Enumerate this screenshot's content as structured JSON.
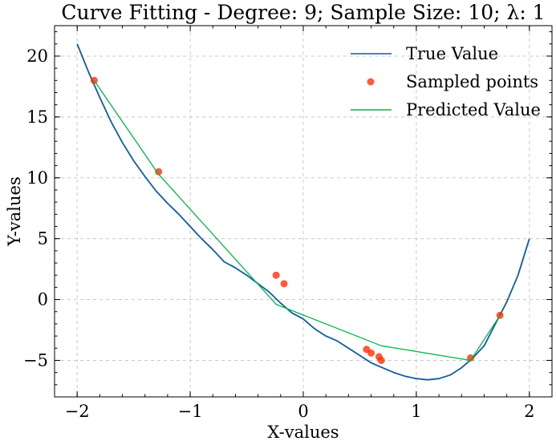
{
  "chart_data": {
    "type": "line",
    "title": "Curve Fitting - Degree: 9; Sample Size: 10; λ: 1",
    "xlabel": "X-values",
    "ylabel": "Y-values",
    "xlim": [
      -2.2,
      2.2
    ],
    "ylim": [
      -8,
      22.5
    ],
    "xticks": [
      -2,
      -1,
      0,
      1,
      2
    ],
    "xtick_labels": [
      "−2",
      "−1",
      "0",
      "1",
      "2"
    ],
    "yticks": [
      -5,
      0,
      5,
      10,
      15,
      20
    ],
    "ytick_labels": [
      "−5",
      "0",
      "5",
      "10",
      "15",
      "20"
    ],
    "grid": true,
    "legend_position": "top-right",
    "series": [
      {
        "name": "True Value",
        "kind": "line",
        "color": "#0c5da5",
        "x": [
          -2.0,
          -1.9,
          -1.8,
          -1.7,
          -1.6,
          -1.5,
          -1.4,
          -1.3,
          -1.2,
          -1.1,
          -1.0,
          -0.9,
          -0.8,
          -0.7,
          -0.6,
          -0.5,
          -0.4,
          -0.3,
          -0.2,
          -0.1,
          0.0,
          0.1,
          0.2,
          0.3,
          0.4,
          0.5,
          0.6,
          0.7,
          0.8,
          0.9,
          1.0,
          1.1,
          1.2,
          1.3,
          1.4,
          1.5,
          1.6,
          1.7,
          1.8,
          1.9,
          2.0
        ],
        "y": [
          21.0,
          18.7,
          16.6,
          14.6,
          12.9,
          11.4,
          10.1,
          8.9,
          7.9,
          7.0,
          6.0,
          5.0,
          4.1,
          3.1,
          2.6,
          2.0,
          1.3,
          0.6,
          -0.3,
          -1.1,
          -1.6,
          -2.4,
          -3.0,
          -3.4,
          -4.0,
          -4.6,
          -5.2,
          -5.6,
          -6.0,
          -6.3,
          -6.5,
          -6.6,
          -6.5,
          -6.2,
          -5.6,
          -4.8,
          -3.8,
          -2.0,
          -0.2,
          2.0,
          5.0
        ]
      },
      {
        "name": "Sampled points",
        "kind": "scatter",
        "color": "#ff2c00",
        "x": [
          -1.85,
          -1.28,
          -0.24,
          -0.17,
          0.56,
          0.6,
          0.67,
          0.69,
          1.48,
          1.74
        ],
        "y": [
          18.0,
          10.5,
          2.0,
          1.3,
          -4.1,
          -4.4,
          -4.7,
          -5.0,
          -4.8,
          -1.3
        ]
      },
      {
        "name": "Predicted Value",
        "kind": "line",
        "color": "#00b945",
        "x": [
          -1.85,
          -1.28,
          -0.24,
          0.69,
          1.48,
          1.74
        ],
        "y": [
          18.0,
          10.3,
          -0.4,
          -3.8,
          -5.0,
          -1.3
        ]
      }
    ]
  }
}
